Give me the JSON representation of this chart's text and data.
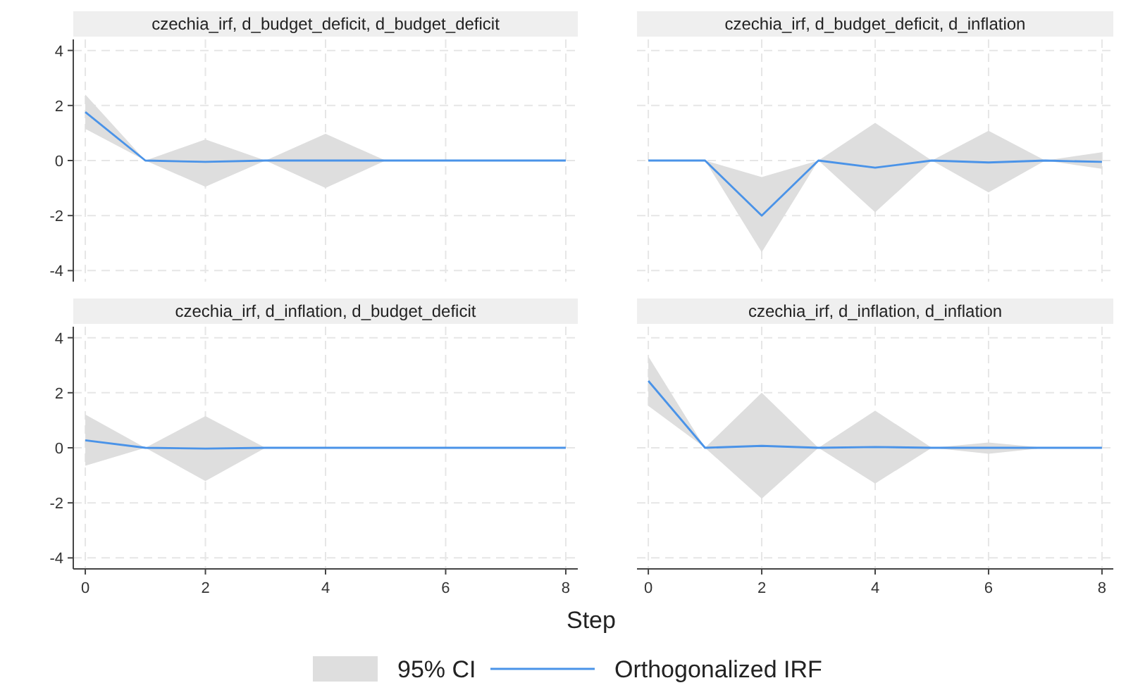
{
  "chart_data": [
    {
      "type": "line",
      "title": "czechia_irf, d_budget_deficit, d_budget_deficit",
      "x": [
        0,
        1,
        2,
        3,
        4,
        5,
        6,
        7,
        8
      ],
      "xlim": [
        -0.2,
        8.2
      ],
      "ylim": [
        -4.4,
        4.4
      ],
      "xticks": [
        0,
        2,
        4,
        6,
        8
      ],
      "yticks": [
        -4,
        -2,
        0,
        2,
        4
      ],
      "grid": true,
      "tick_labels": "y",
      "series": [
        {
          "color": "#4a93e8",
          "values": [
            1.76,
            0,
            -0.05,
            0,
            0,
            0,
            0,
            0,
            0
          ],
          "lower": [
            1.15,
            0,
            -0.95,
            0,
            -1.0,
            0,
            0,
            0,
            0
          ],
          "upper": [
            2.4,
            0,
            0.77,
            0,
            0.97,
            0,
            0,
            0,
            0
          ]
        }
      ]
    },
    {
      "type": "line",
      "title": "czechia_irf, d_budget_deficit, d_inflation",
      "x": [
        0,
        1,
        2,
        3,
        4,
        5,
        6,
        7,
        8
      ],
      "xlim": [
        -0.2,
        8.2
      ],
      "ylim": [
        -4.4,
        4.4
      ],
      "xticks": [
        0,
        2,
        4,
        6,
        8
      ],
      "yticks": [
        -4,
        -2,
        0,
        2,
        4
      ],
      "grid": true,
      "tick_labels": false,
      "series": [
        {
          "color": "#4a93e8",
          "values": [
            0,
            0,
            -2.0,
            0,
            -0.26,
            0,
            -0.07,
            0,
            -0.05
          ],
          "lower": [
            0,
            0,
            -3.33,
            0,
            -1.88,
            0,
            -1.16,
            0,
            -0.3
          ],
          "upper": [
            0,
            0,
            -0.6,
            0,
            1.37,
            0,
            1.08,
            0,
            0.3
          ]
        }
      ]
    },
    {
      "type": "line",
      "title": "czechia_irf, d_inflation, d_budget_deficit",
      "x": [
        0,
        1,
        2,
        3,
        4,
        5,
        6,
        7,
        8
      ],
      "xlim": [
        -0.2,
        8.2
      ],
      "ylim": [
        -4.4,
        4.4
      ],
      "xticks": [
        0,
        2,
        4,
        6,
        8
      ],
      "yticks": [
        -4,
        -2,
        0,
        2,
        4
      ],
      "grid": true,
      "series": [
        {
          "color": "#4a93e8",
          "values": [
            0.27,
            0,
            -0.03,
            0,
            0,
            0,
            0,
            0,
            0
          ],
          "lower": [
            -0.65,
            0,
            -1.21,
            0,
            0,
            0,
            0,
            0,
            0
          ],
          "upper": [
            1.21,
            0,
            1.15,
            0,
            0,
            0,
            0,
            0,
            0
          ]
        }
      ]
    },
    {
      "type": "line",
      "title": "czechia_irf, d_inflation, d_inflation",
      "x": [
        0,
        1,
        2,
        3,
        4,
        5,
        6,
        7,
        8
      ],
      "xlim": [
        -0.2,
        8.2
      ],
      "ylim": [
        -4.4,
        4.4
      ],
      "xticks": [
        0,
        2,
        4,
        6,
        8
      ],
      "yticks": [
        -4,
        -2,
        0,
        2,
        4
      ],
      "grid": true,
      "tick_labels": "x",
      "xlabel": "Step",
      "legend": "bottom",
      "annotations": [
        "95% CI"
      ],
      "series": [
        {
          "name": "Orthogonalized IRF",
          "color": "#4a93e8",
          "values": [
            2.43,
            0,
            0.07,
            0,
            0.03,
            0,
            0,
            0,
            0
          ],
          "lower": [
            1.52,
            0,
            -1.85,
            0,
            -1.3,
            0,
            -0.22,
            0,
            0
          ],
          "upper": [
            3.32,
            0,
            2.0,
            0,
            1.35,
            0,
            0.19,
            0,
            0
          ]
        }
      ]
    }
  ]
}
